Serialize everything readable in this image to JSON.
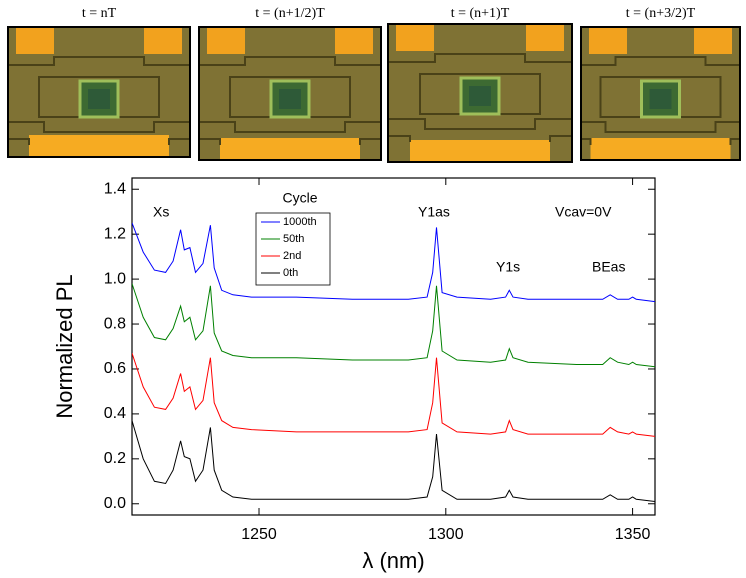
{
  "panels": [
    {
      "label": "t = nT"
    },
    {
      "label": "t = (n+1/2)T"
    },
    {
      "label": "t = (n+1)T"
    },
    {
      "label": "t = (n+3/2)T"
    }
  ],
  "chart_data": {
    "type": "line",
    "x_label": "λ (nm)",
    "y_label": "Normalized PL",
    "legend_title": "Cycle",
    "annotations": [
      "Xs",
      "Y1as",
      "Y1s",
      "BEas",
      "Vcav=0V"
    ],
    "x": [
      1216,
      1219,
      1222,
      1225,
      1227,
      1229,
      1230,
      1231.5,
      1233,
      1235,
      1237,
      1238,
      1240,
      1243,
      1248,
      1260,
      1275,
      1290,
      1295,
      1296.5,
      1297.5,
      1299,
      1303,
      1312,
      1316,
      1317,
      1318,
      1322,
      1335,
      1342,
      1344,
      1346,
      1349,
      1350,
      1351,
      1356
    ],
    "series": [
      {
        "name": "1000th",
        "color": "#0000ff",
        "values": [
          1.25,
          1.12,
          1.04,
          1.03,
          1.08,
          1.22,
          1.13,
          1.14,
          1.03,
          1.07,
          1.24,
          1.05,
          0.95,
          0.93,
          0.92,
          0.92,
          0.91,
          0.91,
          0.92,
          1.03,
          1.23,
          0.94,
          0.92,
          0.91,
          0.92,
          0.95,
          0.92,
          0.91,
          0.91,
          0.91,
          0.93,
          0.91,
          0.91,
          0.92,
          0.91,
          0.9
        ]
      },
      {
        "name": "50th",
        "color": "#008000",
        "values": [
          0.98,
          0.83,
          0.74,
          0.73,
          0.78,
          0.88,
          0.81,
          0.83,
          0.73,
          0.77,
          0.97,
          0.76,
          0.68,
          0.66,
          0.65,
          0.65,
          0.64,
          0.64,
          0.65,
          0.77,
          0.97,
          0.68,
          0.64,
          0.63,
          0.64,
          0.69,
          0.65,
          0.63,
          0.62,
          0.62,
          0.65,
          0.63,
          0.62,
          0.63,
          0.62,
          0.61
        ]
      },
      {
        "name": "2nd",
        "color": "#ff0000",
        "values": [
          0.67,
          0.52,
          0.43,
          0.42,
          0.47,
          0.58,
          0.5,
          0.52,
          0.42,
          0.46,
          0.65,
          0.45,
          0.37,
          0.34,
          0.33,
          0.32,
          0.32,
          0.32,
          0.33,
          0.45,
          0.65,
          0.36,
          0.32,
          0.31,
          0.32,
          0.37,
          0.33,
          0.31,
          0.31,
          0.31,
          0.34,
          0.32,
          0.31,
          0.32,
          0.31,
          0.3
        ]
      },
      {
        "name": "0th",
        "color": "#000000",
        "values": [
          0.37,
          0.2,
          0.1,
          0.09,
          0.15,
          0.28,
          0.21,
          0.2,
          0.1,
          0.15,
          0.34,
          0.15,
          0.06,
          0.03,
          0.02,
          0.02,
          0.02,
          0.02,
          0.03,
          0.12,
          0.31,
          0.06,
          0.02,
          0.02,
          0.03,
          0.06,
          0.03,
          0.02,
          0.02,
          0.02,
          0.04,
          0.02,
          0.02,
          0.03,
          0.02,
          0.01
        ]
      }
    ],
    "xlim": [
      1216,
      1356
    ],
    "xticks": [
      1250,
      1300,
      1350
    ],
    "ylim": [
      -0.05,
      1.45
    ],
    "yticks": [
      {
        "value": 0,
        "label": "0.0"
      },
      0.2,
      0.4,
      0.6,
      0.8,
      {
        "value": 1,
        "label": "1.0"
      },
      1.2,
      1.4
    ]
  }
}
